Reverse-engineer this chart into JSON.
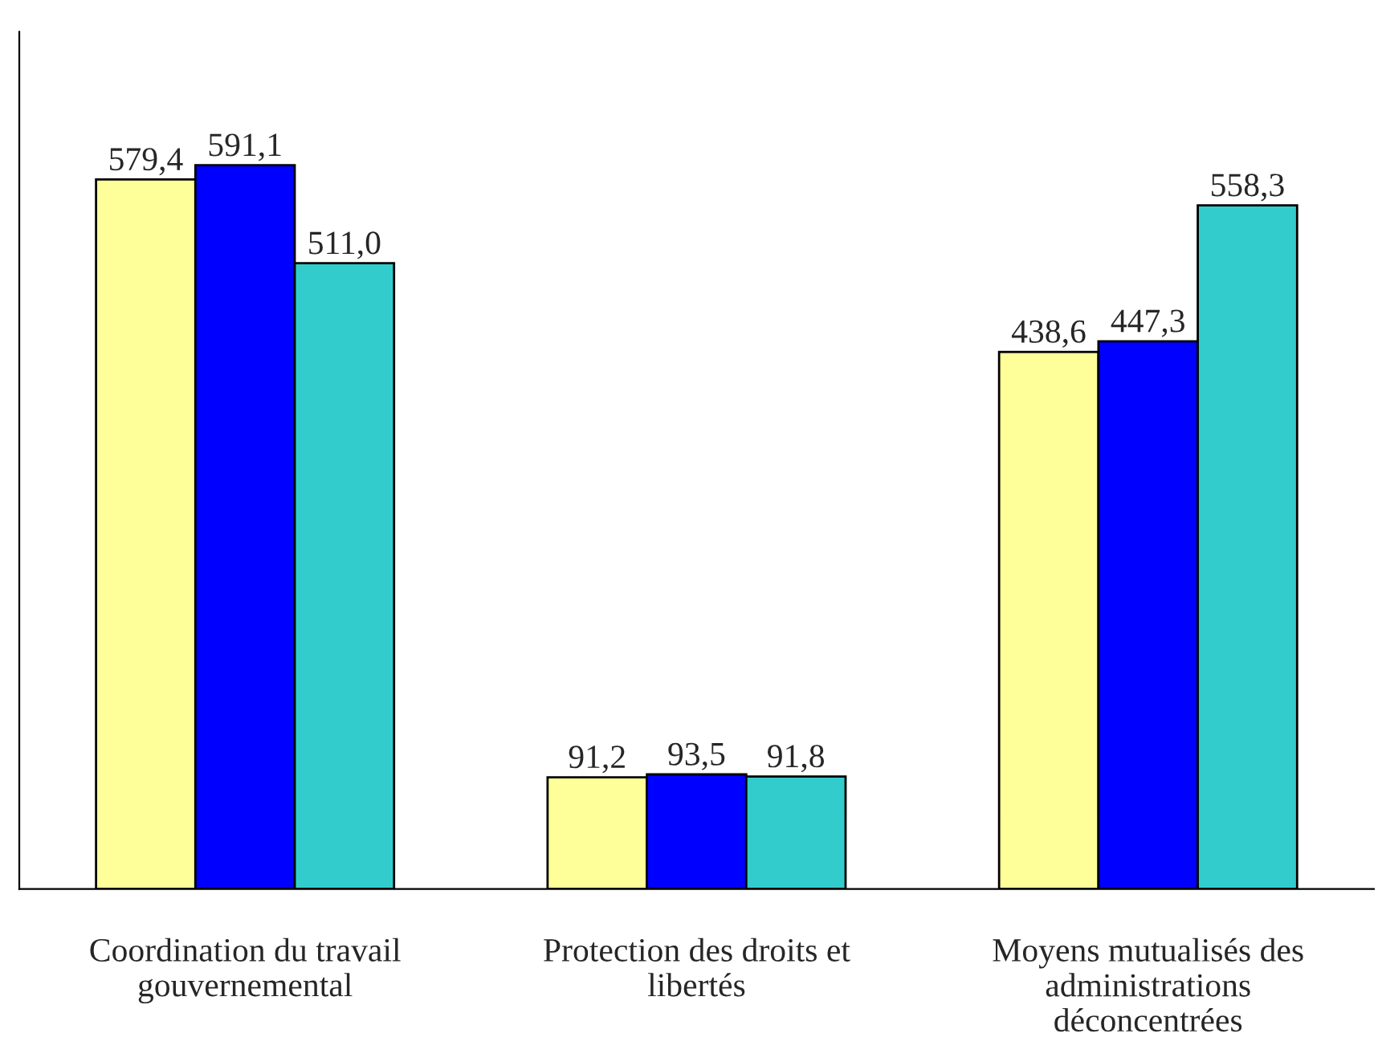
{
  "chart_data": {
    "type": "bar",
    "categories": [
      "Coordination du travail gouvernemental",
      "Protection des droits et libertés",
      "Moyens mutualisés des administrations déconcentrées"
    ],
    "series": [
      {
        "color": "#ffff99",
        "values": [
          579.4,
          91.2,
          438.6
        ],
        "value_labels": [
          "579,4",
          "91,2",
          "438,6"
        ]
      },
      {
        "color": "#0000ff",
        "values": [
          591.1,
          93.5,
          447.3
        ],
        "value_labels": [
          "591,1",
          "93,5",
          "447,3"
        ]
      },
      {
        "color": "#33cccc",
        "values": [
          511.0,
          91.8,
          558.3
        ],
        "value_labels": [
          "511,0",
          "91,8",
          "558,3"
        ]
      }
    ],
    "ylim": [
      0,
      700
    ],
    "tick_labels": "x",
    "grid": false,
    "legend": false
  }
}
